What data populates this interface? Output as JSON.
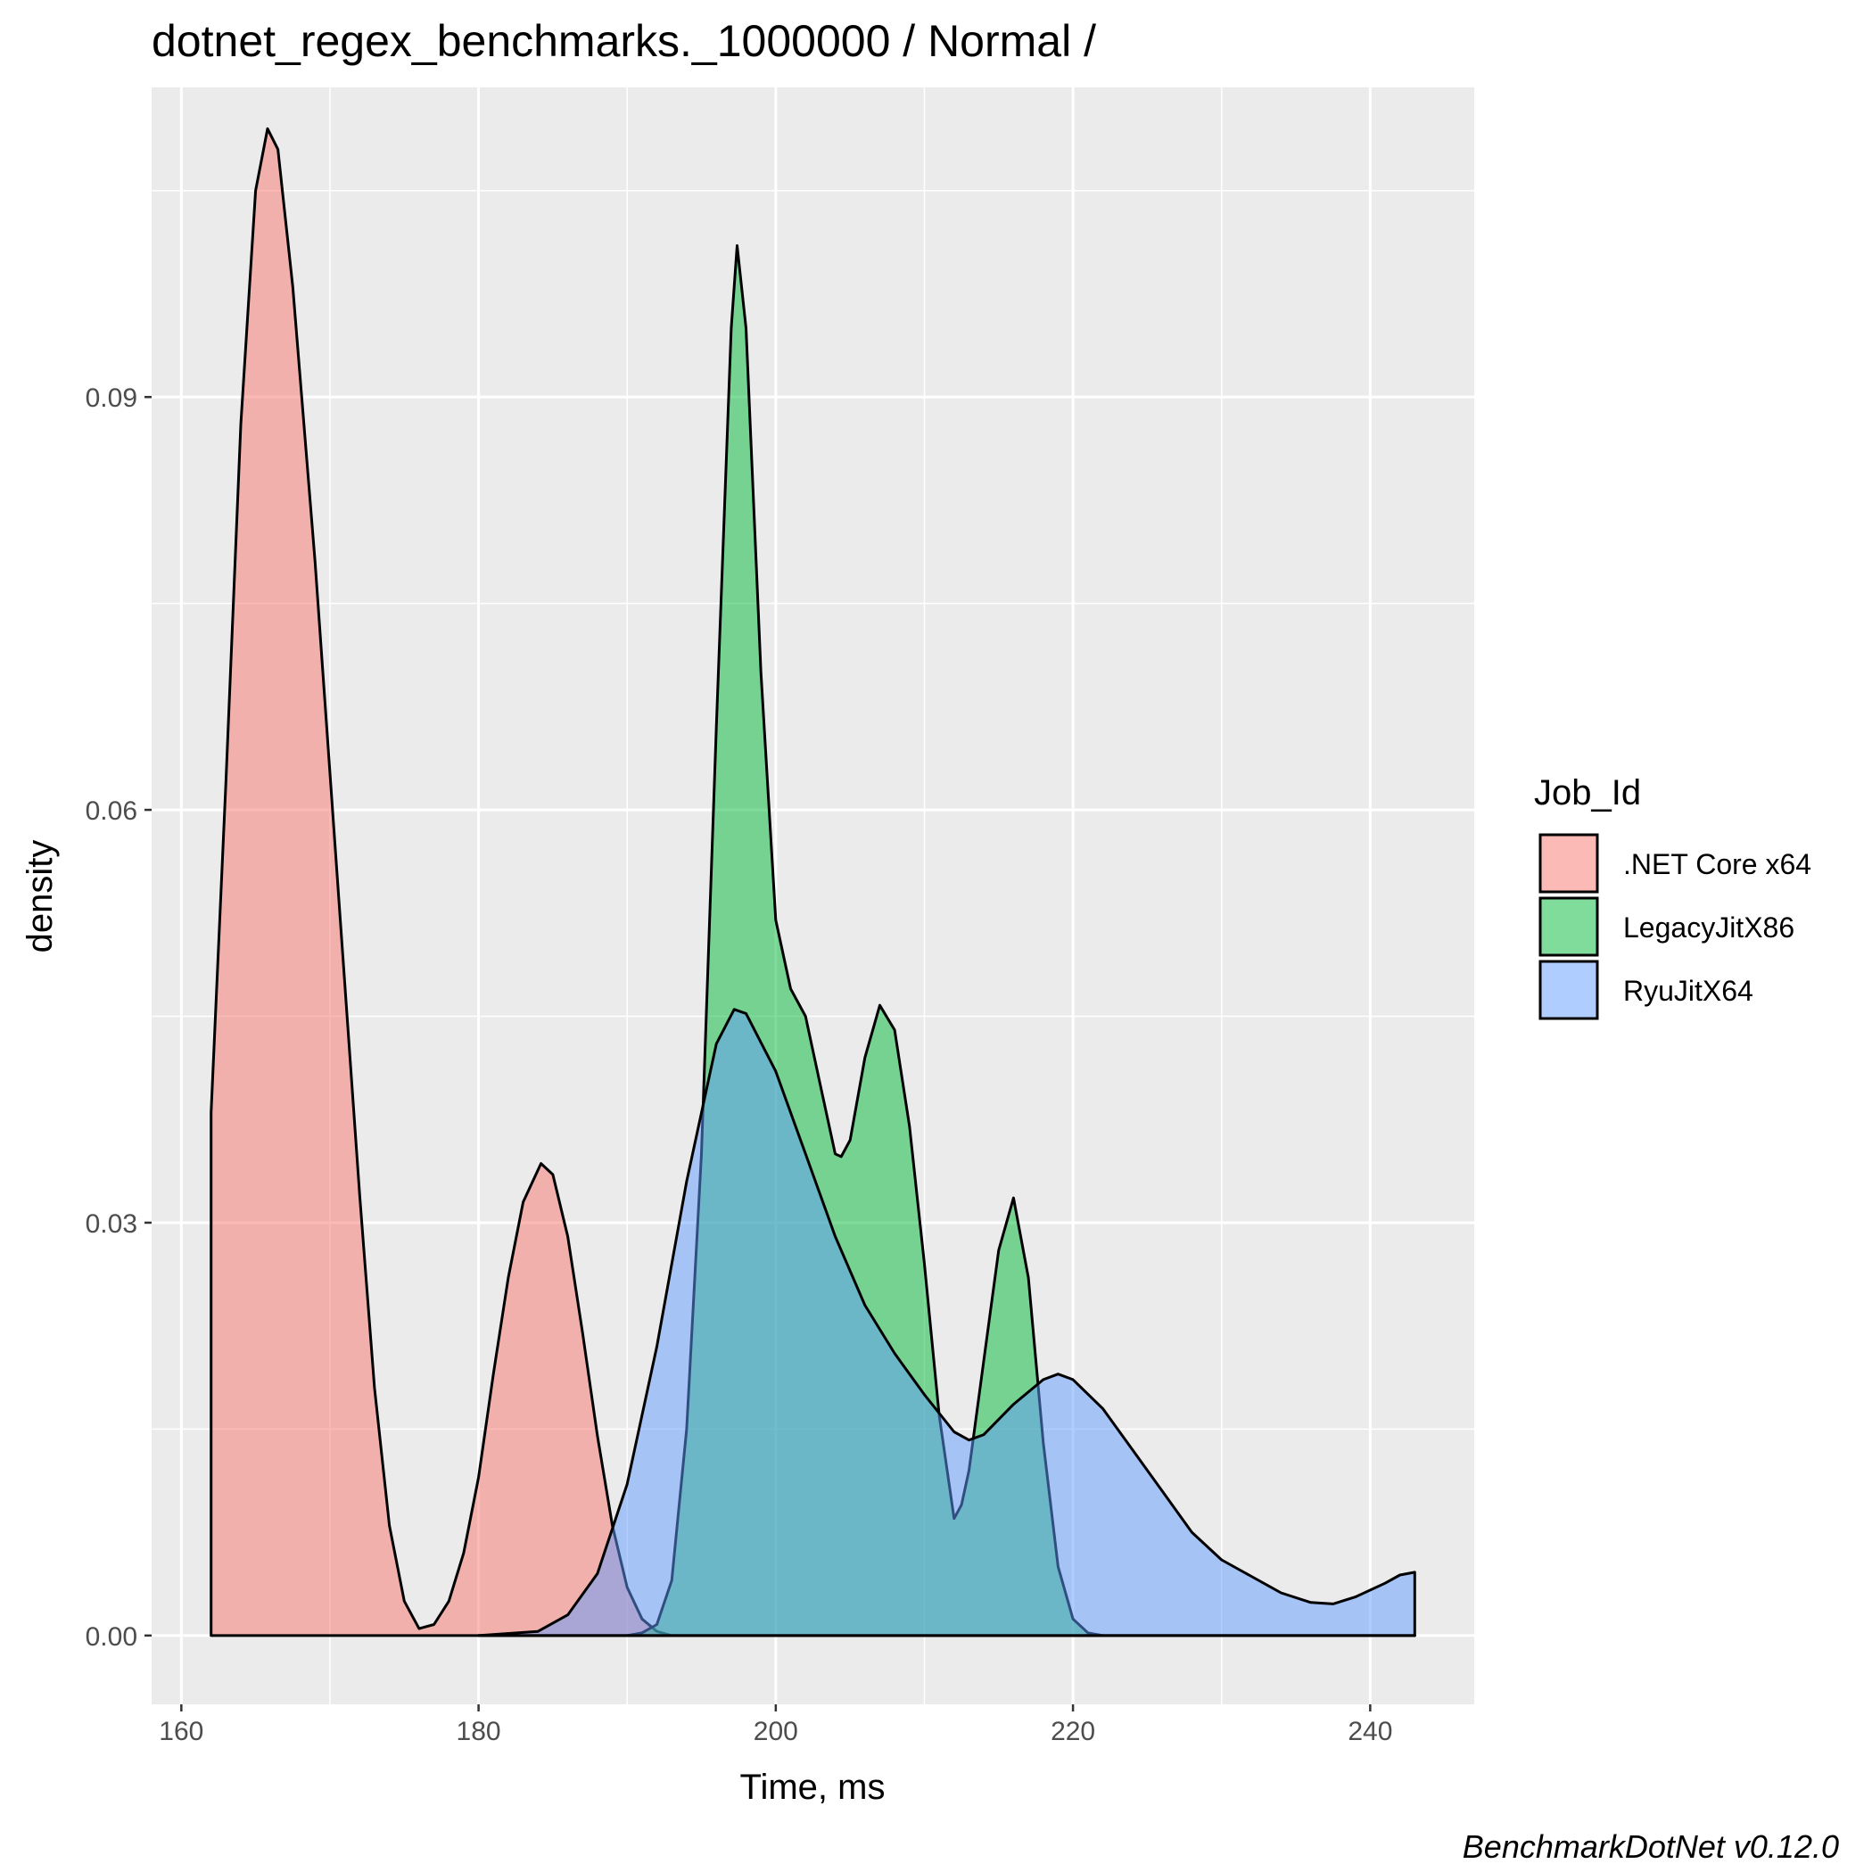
{
  "chart_data": {
    "type": "area",
    "title": "dotnet_regex_benchmarks._1000000 / Normal /",
    "xlabel": "Time, ms",
    "ylabel": "density",
    "caption": "BenchmarkDotNet v0.12.0",
    "xlim": [
      158,
      247
    ],
    "ylim": [
      -0.005,
      0.1125
    ],
    "x_ticks": [
      160,
      180,
      200,
      220,
      240
    ],
    "x_tick_labels": [
      "160",
      "180",
      "200",
      "220",
      "240"
    ],
    "y_ticks": [
      0.0,
      0.03,
      0.06,
      0.09
    ],
    "y_tick_labels": [
      "0.00",
      "0.03",
      "0.06",
      "0.09"
    ],
    "grid": true,
    "legend": {
      "title": "Job_Id",
      "position": "right"
    },
    "series": [
      {
        "name": ".NET Core x64",
        "color": "#F8766D",
        "points": [
          [
            162.0,
            0.0
          ],
          [
            162.0,
            0.038
          ],
          [
            163.0,
            0.062
          ],
          [
            164.0,
            0.088
          ],
          [
            165.0,
            0.105
          ],
          [
            165.8,
            0.1095
          ],
          [
            166.5,
            0.108
          ],
          [
            167.5,
            0.098
          ],
          [
            169.0,
            0.078
          ],
          [
            170.5,
            0.055
          ],
          [
            172.0,
            0.032
          ],
          [
            173.0,
            0.018
          ],
          [
            174.0,
            0.008
          ],
          [
            175.0,
            0.0025
          ],
          [
            176.0,
            0.0005
          ],
          [
            177.0,
            0.0008
          ],
          [
            178.0,
            0.0025
          ],
          [
            179.0,
            0.006
          ],
          [
            180.0,
            0.0115
          ],
          [
            181.0,
            0.019
          ],
          [
            182.0,
            0.026
          ],
          [
            183.0,
            0.0315
          ],
          [
            184.2,
            0.0343
          ],
          [
            185.0,
            0.0335
          ],
          [
            186.0,
            0.029
          ],
          [
            187.0,
            0.022
          ],
          [
            188.0,
            0.0145
          ],
          [
            189.0,
            0.008
          ],
          [
            190.0,
            0.0035
          ],
          [
            191.0,
            0.0012
          ],
          [
            192.0,
            0.0003
          ],
          [
            193.0,
            0.0
          ],
          [
            243.0,
            0.0
          ]
        ]
      },
      {
        "name": "LegacyJitX86",
        "color": "#00BA38",
        "points": [
          [
            180.0,
            0.0
          ],
          [
            190.0,
            0.0
          ],
          [
            191.0,
            0.0002
          ],
          [
            192.0,
            0.0008
          ],
          [
            193.0,
            0.004
          ],
          [
            194.0,
            0.015
          ],
          [
            195.0,
            0.035
          ],
          [
            196.0,
            0.066
          ],
          [
            197.0,
            0.095
          ],
          [
            197.4,
            0.101
          ],
          [
            198.0,
            0.095
          ],
          [
            199.0,
            0.07
          ],
          [
            200.0,
            0.052
          ],
          [
            201.0,
            0.047
          ],
          [
            202.0,
            0.045
          ],
          [
            203.0,
            0.04
          ],
          [
            204.0,
            0.035
          ],
          [
            204.4,
            0.0348
          ],
          [
            205.0,
            0.036
          ],
          [
            206.0,
            0.042
          ],
          [
            207.0,
            0.0458
          ],
          [
            208.0,
            0.044
          ],
          [
            209.0,
            0.037
          ],
          [
            210.0,
            0.027
          ],
          [
            211.0,
            0.016
          ],
          [
            212.0,
            0.0085
          ],
          [
            212.5,
            0.0095
          ],
          [
            213.0,
            0.012
          ],
          [
            214.0,
            0.02
          ],
          [
            215.0,
            0.028
          ],
          [
            216.0,
            0.0318
          ],
          [
            217.0,
            0.026
          ],
          [
            218.0,
            0.014
          ],
          [
            219.0,
            0.005
          ],
          [
            220.0,
            0.0012
          ],
          [
            221.0,
            0.0002
          ],
          [
            222.0,
            0.0
          ],
          [
            243.0,
            0.0
          ]
        ]
      },
      {
        "name": "RyuJitX64",
        "color": "#619CFF",
        "points": [
          [
            180.0,
            0.0
          ],
          [
            184.0,
            0.0003
          ],
          [
            186.0,
            0.0015
          ],
          [
            188.0,
            0.0045
          ],
          [
            190.0,
            0.011
          ],
          [
            192.0,
            0.021
          ],
          [
            194.0,
            0.033
          ],
          [
            196.0,
            0.043
          ],
          [
            197.2,
            0.0455
          ],
          [
            198.0,
            0.0452
          ],
          [
            200.0,
            0.041
          ],
          [
            202.0,
            0.035
          ],
          [
            204.0,
            0.029
          ],
          [
            206.0,
            0.024
          ],
          [
            208.0,
            0.0205
          ],
          [
            210.0,
            0.0175
          ],
          [
            212.0,
            0.0148
          ],
          [
            213.0,
            0.0142
          ],
          [
            214.0,
            0.0146
          ],
          [
            216.0,
            0.0168
          ],
          [
            218.0,
            0.0186
          ],
          [
            219.0,
            0.019
          ],
          [
            220.0,
            0.0186
          ],
          [
            222.0,
            0.0165
          ],
          [
            224.0,
            0.0135
          ],
          [
            226.0,
            0.0105
          ],
          [
            228.0,
            0.0075
          ],
          [
            230.0,
            0.0055
          ],
          [
            232.0,
            0.0043
          ],
          [
            234.0,
            0.0031
          ],
          [
            236.0,
            0.0024
          ],
          [
            237.5,
            0.0023
          ],
          [
            239.0,
            0.0028
          ],
          [
            241.0,
            0.0038
          ],
          [
            242.0,
            0.0044
          ],
          [
            243.0,
            0.0046
          ],
          [
            243.0,
            0.0
          ]
        ]
      }
    ]
  }
}
